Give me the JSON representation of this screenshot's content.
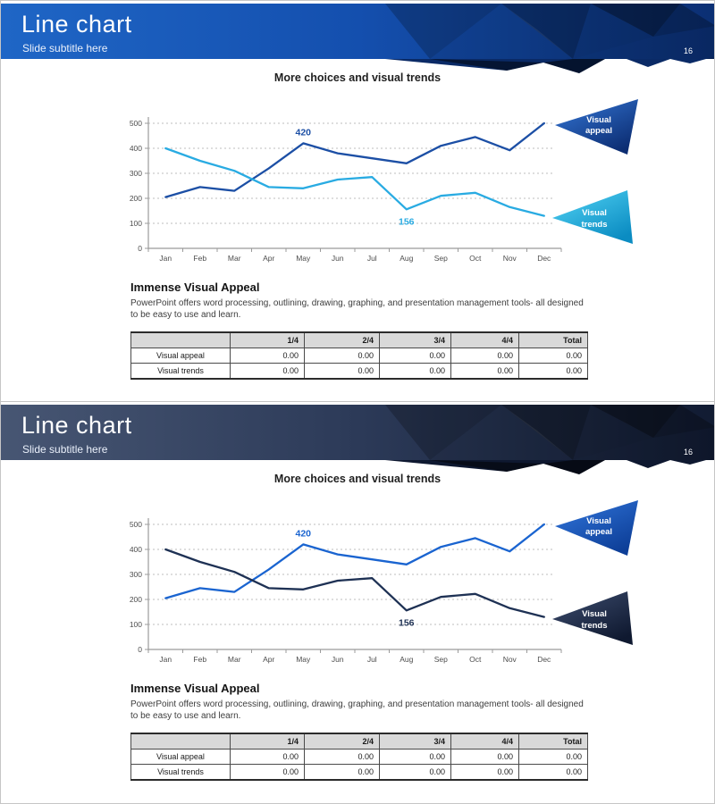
{
  "page": {
    "background": "#ffffff",
    "frame_border_color": "#c6c6c6"
  },
  "chart_data": [
    {
      "type": "line",
      "title": "More choices and visual trends",
      "categories": [
        "Jan",
        "Feb",
        "Mar",
        "Apr",
        "May",
        "Jun",
        "Jul",
        "Aug",
        "Sep",
        "Oct",
        "Nov",
        "Dec"
      ],
      "series": [
        {
          "name": "Visual appeal",
          "color": "#1c4fa5",
          "values": [
            205,
            245,
            230,
            320,
            420,
            380,
            360,
            340,
            410,
            445,
            392,
            500
          ],
          "point_label": {
            "category": "May",
            "text": "420",
            "position": "above"
          }
        },
        {
          "name": "Visual trends",
          "color": "#29abe2",
          "values": [
            400,
            350,
            310,
            245,
            240,
            275,
            285,
            156,
            210,
            222,
            165,
            130
          ],
          "point_label": {
            "category": "Aug",
            "text": "156",
            "position": "below"
          }
        }
      ],
      "ylim": [
        0,
        500
      ],
      "yticks": [
        0,
        100,
        200,
        300,
        400,
        500
      ],
      "grid": "horizontal-dashed",
      "legend_position": "triangle-callouts-right"
    },
    {
      "type": "line",
      "title": "More choices and visual trends",
      "categories": [
        "Jan",
        "Feb",
        "Mar",
        "Apr",
        "May",
        "Jun",
        "Jul",
        "Aug",
        "Sep",
        "Oct",
        "Nov",
        "Dec"
      ],
      "series": [
        {
          "name": "Visual appeal",
          "color": "#1a64d0",
          "values": [
            205,
            245,
            230,
            320,
            420,
            380,
            360,
            340,
            410,
            445,
            392,
            500
          ],
          "point_label": {
            "category": "May",
            "text": "420",
            "position": "above"
          }
        },
        {
          "name": "Visual trends",
          "color": "#1e3154",
          "values": [
            400,
            350,
            310,
            245,
            240,
            275,
            285,
            156,
            210,
            222,
            165,
            130
          ],
          "point_label": {
            "category": "Aug",
            "text": "156",
            "position": "below"
          }
        }
      ],
      "ylim": [
        0,
        500
      ],
      "yticks": [
        0,
        100,
        200,
        300,
        400,
        500
      ],
      "grid": "horizontal-dashed",
      "legend_position": "triangle-callouts-right"
    }
  ],
  "slides": [
    {
      "header": {
        "title": "Line chart",
        "subtitle": "Slide subtitle here",
        "page_number": "16",
        "band_gradient": [
          "#1f66c6",
          "#144fae",
          "#0b2f73"
        ],
        "facet_dark": "#0a2a66"
      },
      "chart_title": "More choices and visual trends",
      "callouts": [
        {
          "label": "Visual appeal",
          "gradient": [
            "#3578d8",
            "#0c2d72"
          ]
        },
        {
          "label": "Visual trends",
          "gradient": [
            "#53d4f5",
            "#0b8cc2"
          ]
        }
      ],
      "section": {
        "heading": "Immense Visual Appeal",
        "paragraph": "PowerPoint offers word processing, outlining, drawing, graphing, and presentation management tools- all designed to be easy to use and learn."
      },
      "table": {
        "headers": [
          "",
          "1/4",
          "2/4",
          "3/4",
          "4/4",
          "Total"
        ],
        "rows": [
          [
            "Visual appeal",
            "0.00",
            "0.00",
            "0.00",
            "0.00",
            "0.00"
          ],
          [
            "Visual trends",
            "0.00",
            "0.00",
            "0.00",
            "0.00",
            "0.00"
          ]
        ]
      },
      "axis_colors": {
        "axis": "#9b9b9b",
        "grid": "#bdbdbd",
        "tick_label": "#4d4d4d"
      }
    },
    {
      "header": {
        "title": "Line chart",
        "subtitle": "Slide subtitle here",
        "page_number": "16",
        "band_gradient": [
          "#475673",
          "#2c3a58",
          "#111b32"
        ],
        "facet_dark": "#0e1830"
      },
      "chart_title": "More choices and visual trends",
      "callouts": [
        {
          "label": "Visual appeal",
          "gradient": [
            "#3277dd",
            "#0d3e97"
          ]
        },
        {
          "label": "Visual trends",
          "gradient": [
            "#3e4e70",
            "#0f1930"
          ]
        }
      ],
      "section": {
        "heading": "Immense Visual Appeal",
        "paragraph": "PowerPoint offers word processing, outlining, drawing, graphing, and presentation management tools- all designed to be easy to use and learn."
      },
      "table": {
        "headers": [
          "",
          "1/4",
          "2/4",
          "3/4",
          "4/4",
          "Total"
        ],
        "rows": [
          [
            "Visual appeal",
            "0.00",
            "0.00",
            "0.00",
            "0.00",
            "0.00"
          ],
          [
            "Visual trends",
            "0.00",
            "0.00",
            "0.00",
            "0.00",
            "0.00"
          ]
        ]
      },
      "axis_colors": {
        "axis": "#9b9b9b",
        "grid": "#bdbdbd",
        "tick_label": "#4d4d4d"
      }
    }
  ]
}
